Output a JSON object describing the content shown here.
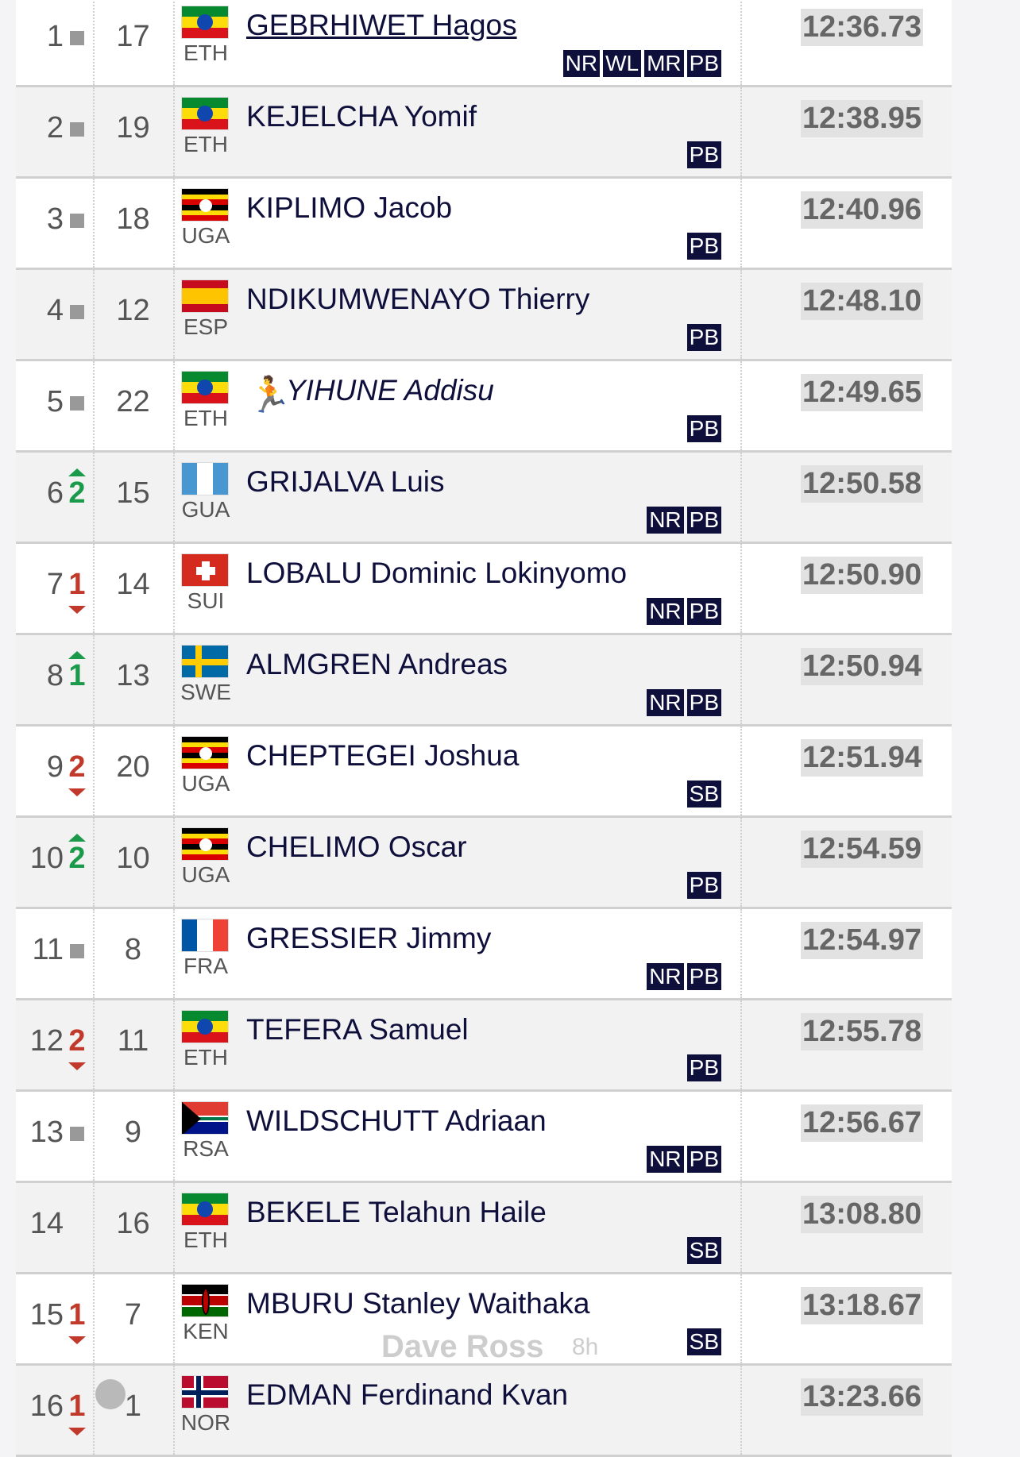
{
  "results": [
    {
      "rank": "1",
      "change": "same",
      "change_value": "",
      "bib": "17",
      "country": "ETH",
      "flag": "eth",
      "name": "GEBRHIWET Hagos",
      "link": true,
      "badges": [
        "NR",
        "WL",
        "MR",
        "PB"
      ],
      "time": "12:36.73"
    },
    {
      "rank": "2",
      "change": "same",
      "change_value": "",
      "bib": "19",
      "country": "ETH",
      "flag": "eth",
      "name": "KEJELCHA Yomif",
      "badges": [
        "PB"
      ],
      "time": "12:38.95"
    },
    {
      "rank": "3",
      "change": "same",
      "change_value": "",
      "bib": "18",
      "country": "UGA",
      "flag": "uga",
      "name": "KIPLIMO Jacob",
      "badges": [
        "PB"
      ],
      "time": "12:40.96"
    },
    {
      "rank": "4",
      "change": "same",
      "change_value": "",
      "bib": "12",
      "country": "ESP",
      "flag": "esp",
      "name": "NDIKUMWENAYO Thierry",
      "badges": [
        "PB"
      ],
      "time": "12:48.10"
    },
    {
      "rank": "5",
      "change": "same",
      "change_value": "",
      "bib": "22",
      "country": "ETH",
      "flag": "eth",
      "name": "YIHUNE Addisu",
      "pacer": true,
      "badges": [
        "PB"
      ],
      "time": "12:49.65"
    },
    {
      "rank": "6",
      "change": "up",
      "change_value": "2",
      "bib": "15",
      "country": "GUA",
      "flag": "gua",
      "name": "GRIJALVA Luis",
      "badges": [
        "NR",
        "PB"
      ],
      "time": "12:50.58"
    },
    {
      "rank": "7",
      "change": "down",
      "change_value": "1",
      "bib": "14",
      "country": "SUI",
      "flag": "sui",
      "name": "LOBALU Dominic Lokinyomo",
      "badges": [
        "NR",
        "PB"
      ],
      "time": "12:50.90"
    },
    {
      "rank": "8",
      "change": "up",
      "change_value": "1",
      "bib": "13",
      "country": "SWE",
      "flag": "swe",
      "name": "ALMGREN Andreas",
      "badges": [
        "NR",
        "PB"
      ],
      "time": "12:50.94"
    },
    {
      "rank": "9",
      "change": "down",
      "change_value": "2",
      "bib": "20",
      "country": "UGA",
      "flag": "uga",
      "name": "CHEPTEGEI Joshua",
      "badges": [
        "SB"
      ],
      "time": "12:51.94"
    },
    {
      "rank": "10",
      "change": "up",
      "change_value": "2",
      "bib": "10",
      "country": "UGA",
      "flag": "uga",
      "name": "CHELIMO Oscar",
      "badges": [
        "PB"
      ],
      "time": "12:54.59"
    },
    {
      "rank": "11",
      "change": "same",
      "change_value": "",
      "bib": "8",
      "country": "FRA",
      "flag": "fra",
      "name": "GRESSIER Jimmy",
      "badges": [
        "NR",
        "PB"
      ],
      "time": "12:54.97"
    },
    {
      "rank": "12",
      "change": "down",
      "change_value": "2",
      "bib": "11",
      "country": "ETH",
      "flag": "eth",
      "name": "TEFERA Samuel",
      "badges": [
        "PB"
      ],
      "time": "12:55.78"
    },
    {
      "rank": "13",
      "change": "same",
      "change_value": "",
      "bib": "9",
      "country": "RSA",
      "flag": "rsa",
      "name": "WILDSCHUTT Adriaan",
      "badges": [
        "NR",
        "PB"
      ],
      "time": "12:56.67"
    },
    {
      "rank": "14",
      "change": "none",
      "change_value": "",
      "bib": "16",
      "country": "ETH",
      "flag": "eth",
      "name": "BEKELE Telahun Haile",
      "badges": [
        "SB"
      ],
      "time": "13:08.80"
    },
    {
      "rank": "15",
      "change": "down",
      "change_value": "1",
      "bib": "7",
      "country": "KEN",
      "flag": "ken",
      "name": "MBURU Stanley Waithaka",
      "badges": [
        "SB"
      ],
      "time": "13:18.67"
    },
    {
      "rank": "16",
      "change": "down",
      "change_value": "1",
      "bib": "1",
      "country": "NOR",
      "flag": "nor",
      "name": "EDMAN Ferdinand Kvan",
      "badges": [],
      "time": "13:23.66"
    }
  ],
  "overlay": {
    "watermark": "Dave Ross",
    "age": "8h",
    "icon": "globe-icon"
  },
  "colors": {
    "badge": "#0f0f3c",
    "up": "#1a9a4a",
    "down": "#c0392b"
  }
}
